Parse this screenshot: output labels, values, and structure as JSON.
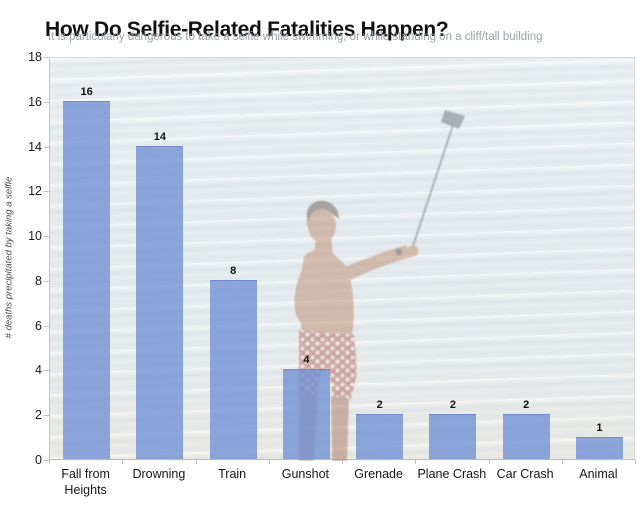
{
  "chart_data": {
    "type": "bar",
    "title": "How Do Selfie-Related Fatalities Happen?",
    "subtitle": "It is particularly dangerous to take a selfie while swimming, or while standing on a cliff/tall building",
    "categories": [
      "Fall from Heights",
      "Drowning",
      "Train",
      "Gunshot",
      "Grenade",
      "Plane Crash",
      "Car Crash",
      "Animal"
    ],
    "values": [
      16,
      14,
      8,
      4,
      2,
      2,
      2,
      1
    ],
    "xlabel": "",
    "ylabel": "# deaths precipitated by taking a selfie",
    "ylim": [
      0,
      18
    ],
    "yticks": [
      0,
      2,
      4,
      6,
      8,
      10,
      12,
      14,
      16,
      18
    ],
    "grid": false,
    "legend": "none",
    "value_labels_shown": true,
    "background_image_description": "faded photo of a shirtless man in patterned swim shorts standing in pale ocean water, holding a selfie stick with phone raised up to the right"
  },
  "colors": {
    "bar_fill": "#8ba7e0",
    "title_text": "#111111",
    "subtitle_text": "#9aa0a3",
    "axis_line": "#c3c6c8",
    "plot_background": "#e9edef",
    "value_label_text": "#111111"
  }
}
